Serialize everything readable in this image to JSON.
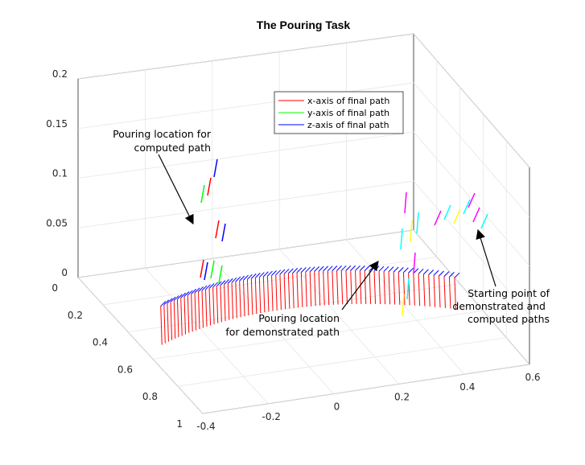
{
  "chart_data": {
    "type": "line",
    "title": "The Pouring Task",
    "view": "3d",
    "grid": true,
    "legend_placement": "top-center",
    "axes": {
      "x": {
        "ticks": [
          "-0.4",
          "-0.2",
          "0",
          "0.2",
          "0.4",
          "0.6"
        ],
        "range": [
          -0.4,
          0.6
        ]
      },
      "y": {
        "ticks": [
          "0",
          "0.2",
          "0.4",
          "0.6",
          "0.8",
          "1"
        ],
        "range": [
          0,
          1
        ]
      },
      "z": {
        "ticks": [
          "0",
          "0.05",
          "0.1",
          "0.15",
          "0.2"
        ],
        "range": [
          0,
          0.2
        ]
      }
    },
    "series": [
      {
        "name": "x-axis of final path",
        "color": "#ff0000"
      },
      {
        "name": "y-axis of final path",
        "color": "#00ff00"
      },
      {
        "name": "z-axis of final path",
        "color": "#0000ff"
      }
    ],
    "secondary_colors": {
      "cyan": "#00ffff",
      "yellow": "#ffff00",
      "magenta": "#ff00ff"
    },
    "annotations": [
      {
        "id": "pour_computed",
        "lines": [
          "Pouring location for",
          "computed path"
        ]
      },
      {
        "id": "pour_demo",
        "lines": [
          "Pouring location",
          "for demonstrated path"
        ]
      },
      {
        "id": "start",
        "lines": [
          "Starting point of",
          "demonstrated and",
          "computed paths"
        ]
      }
    ]
  }
}
